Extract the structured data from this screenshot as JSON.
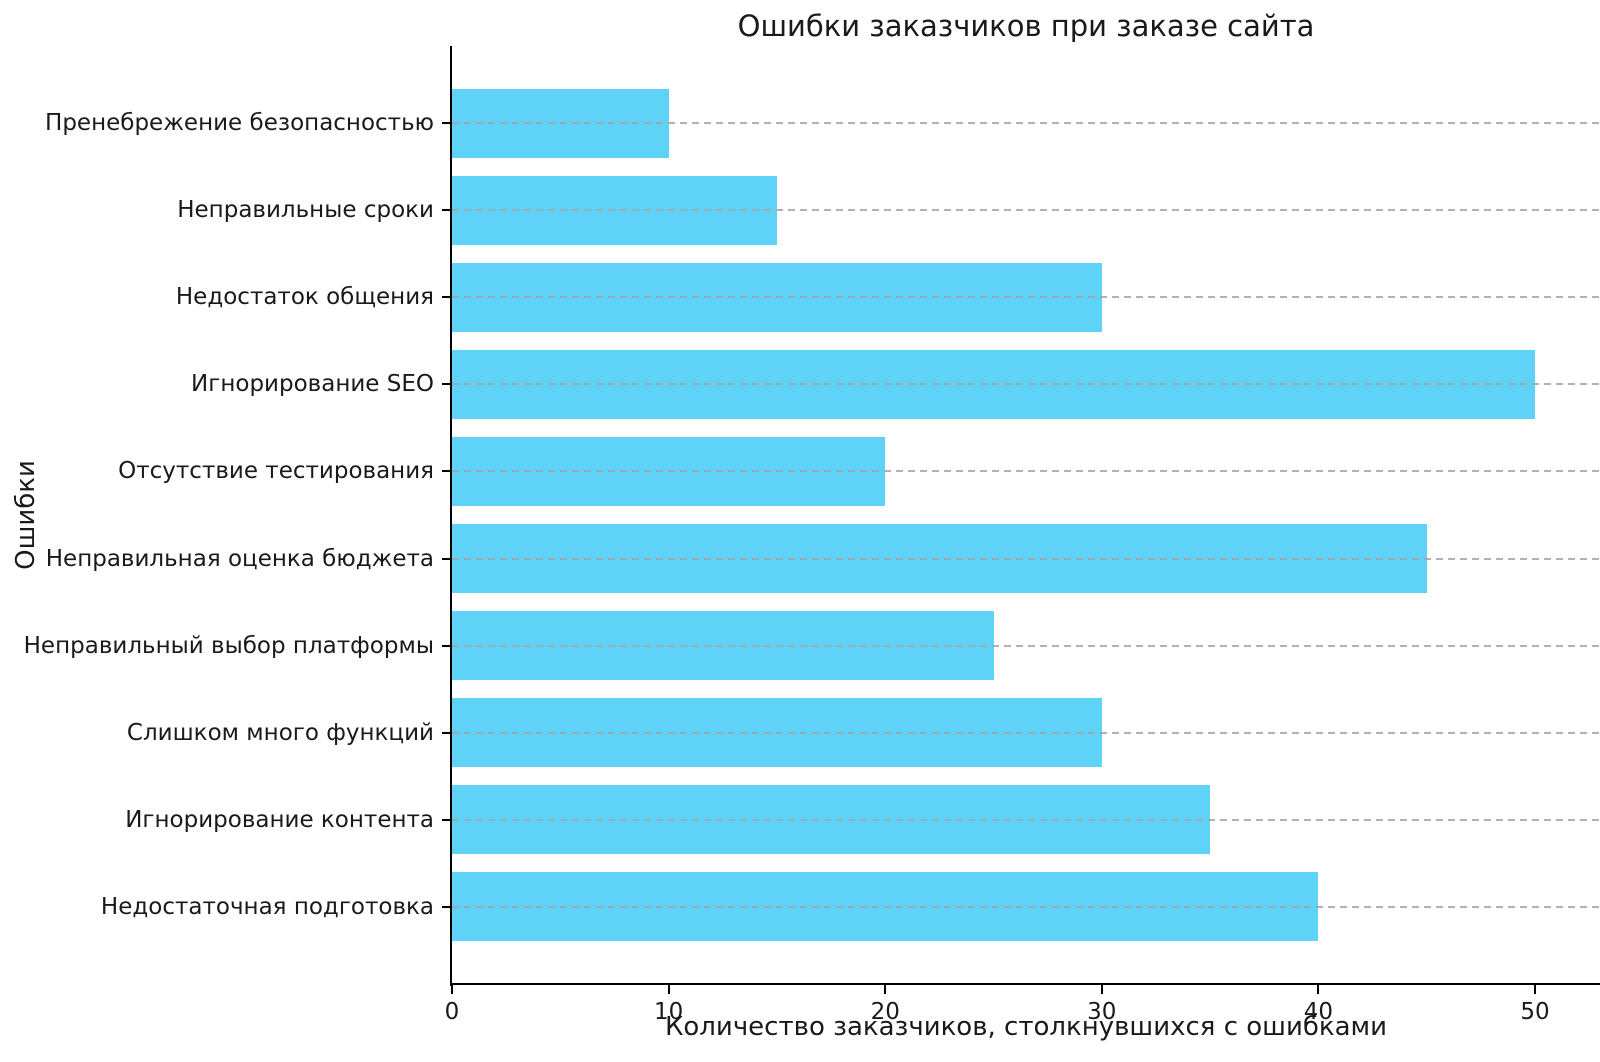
{
  "chart_data": {
    "type": "bar",
    "orientation": "horizontal",
    "title": "Ошибки заказчиков при заказе сайта",
    "xlabel": "Количество заказчиков, столкнувшихся с ошибками",
    "ylabel": "Ошибки",
    "categories": [
      "Пренебрежение безопасностью",
      "Неправильные сроки",
      "Недостаток общения",
      "Игнорирование SEO",
      "Отсутствие тестирования",
      "Неправильная оценка бюджета",
      "Неправильный выбор платформы",
      "Слишком много функций",
      "Игнорирование контента",
      "Недостаточная подготовка"
    ],
    "values": [
      10,
      15,
      30,
      50,
      20,
      45,
      25,
      30,
      35,
      40
    ],
    "x_ticks": [
      0,
      10,
      20,
      30,
      40,
      50
    ],
    "xlim": [
      0,
      53
    ],
    "bar_color": "#5fd3f7",
    "background_color": "#ffffff",
    "grid": {
      "axis": "y",
      "linestyle": "dashed",
      "color": "#a5a5a5",
      "on": true
    },
    "legend": null,
    "bar_width_fraction": 0.8
  }
}
